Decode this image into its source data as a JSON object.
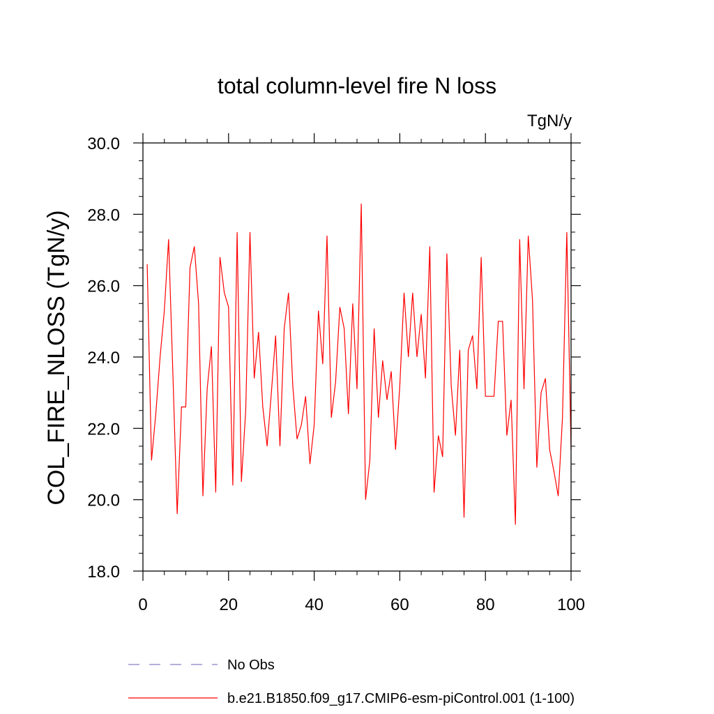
{
  "chart_data": {
    "type": "line",
    "title": "total column-level fire N loss",
    "units": "TgN/y",
    "xlabel": "",
    "ylabel": "COL_FIRE_NLOSS  (TgN/y)",
    "xlim": [
      0,
      100
    ],
    "ylim": [
      18,
      30
    ],
    "xticks": [
      0,
      20,
      40,
      60,
      80,
      100
    ],
    "xtick_labels": [
      "0",
      "20",
      "40",
      "60",
      "80",
      "100"
    ],
    "yticks": [
      18,
      20,
      22,
      24,
      26,
      28,
      30
    ],
    "ytick_labels": [
      "18.0",
      "20.0",
      "22.0",
      "24.0",
      "26.0",
      "28.0",
      "30.0"
    ],
    "grid": false,
    "legend": [
      "No Obs",
      "b.e21.B1850.f09_g17.CMIP6-esm-piControl.001 (1-100)"
    ],
    "series": [
      {
        "name": "b.e21.B1850.f09_g17.CMIP6-esm-piControl.001 (1-100)",
        "color": "#ff0000",
        "x": [
          1,
          2,
          3,
          4,
          5,
          6,
          7,
          8,
          9,
          10,
          11,
          12,
          13,
          14,
          15,
          16,
          17,
          18,
          19,
          20,
          21,
          22,
          23,
          24,
          25,
          26,
          27,
          28,
          29,
          30,
          31,
          32,
          33,
          34,
          35,
          36,
          37,
          38,
          39,
          40,
          41,
          42,
          43,
          44,
          45,
          46,
          47,
          48,
          49,
          50,
          51,
          52,
          53,
          54,
          55,
          56,
          57,
          58,
          59,
          60,
          61,
          62,
          63,
          64,
          65,
          66,
          67,
          68,
          69,
          70,
          71,
          72,
          73,
          74,
          75,
          76,
          77,
          78,
          79,
          80,
          81,
          82,
          83,
          84,
          85,
          86,
          87,
          88,
          89,
          90,
          91,
          92,
          93,
          94,
          95,
          96,
          97,
          98,
          99,
          100
        ],
        "values": [
          26.6,
          21.1,
          22.4,
          24.0,
          25.3,
          27.3,
          23.5,
          19.6,
          22.6,
          22.6,
          26.5,
          27.1,
          25.5,
          20.1,
          23.1,
          24.3,
          20.2,
          26.8,
          25.8,
          25.4,
          20.4,
          27.5,
          20.5,
          22.5,
          27.5,
          23.4,
          24.7,
          22.6,
          21.5,
          23.0,
          24.6,
          21.5,
          24.8,
          25.8,
          23.2,
          21.7,
          22.1,
          22.9,
          21.0,
          22.1,
          25.3,
          23.8,
          27.4,
          22.3,
          23.3,
          25.4,
          24.8,
          22.4,
          25.5,
          23.1,
          28.3,
          20.0,
          21.1,
          24.8,
          22.3,
          23.9,
          22.8,
          23.6,
          21.4,
          23.2,
          25.8,
          24.0,
          25.8,
          24.0,
          25.2,
          23.4,
          27.1,
          20.2,
          21.8,
          21.2,
          26.9,
          23.2,
          21.8,
          24.2,
          19.5,
          24.2,
          24.6,
          23.1,
          26.8,
          22.9,
          22.9,
          22.9,
          25.0,
          25.0,
          21.8,
          22.8,
          19.3,
          27.3,
          23.1,
          27.4,
          25.6,
          20.9,
          23.0,
          23.4,
          21.4,
          20.8,
          20.1,
          22.3,
          27.5,
          21.4
        ]
      }
    ]
  }
}
